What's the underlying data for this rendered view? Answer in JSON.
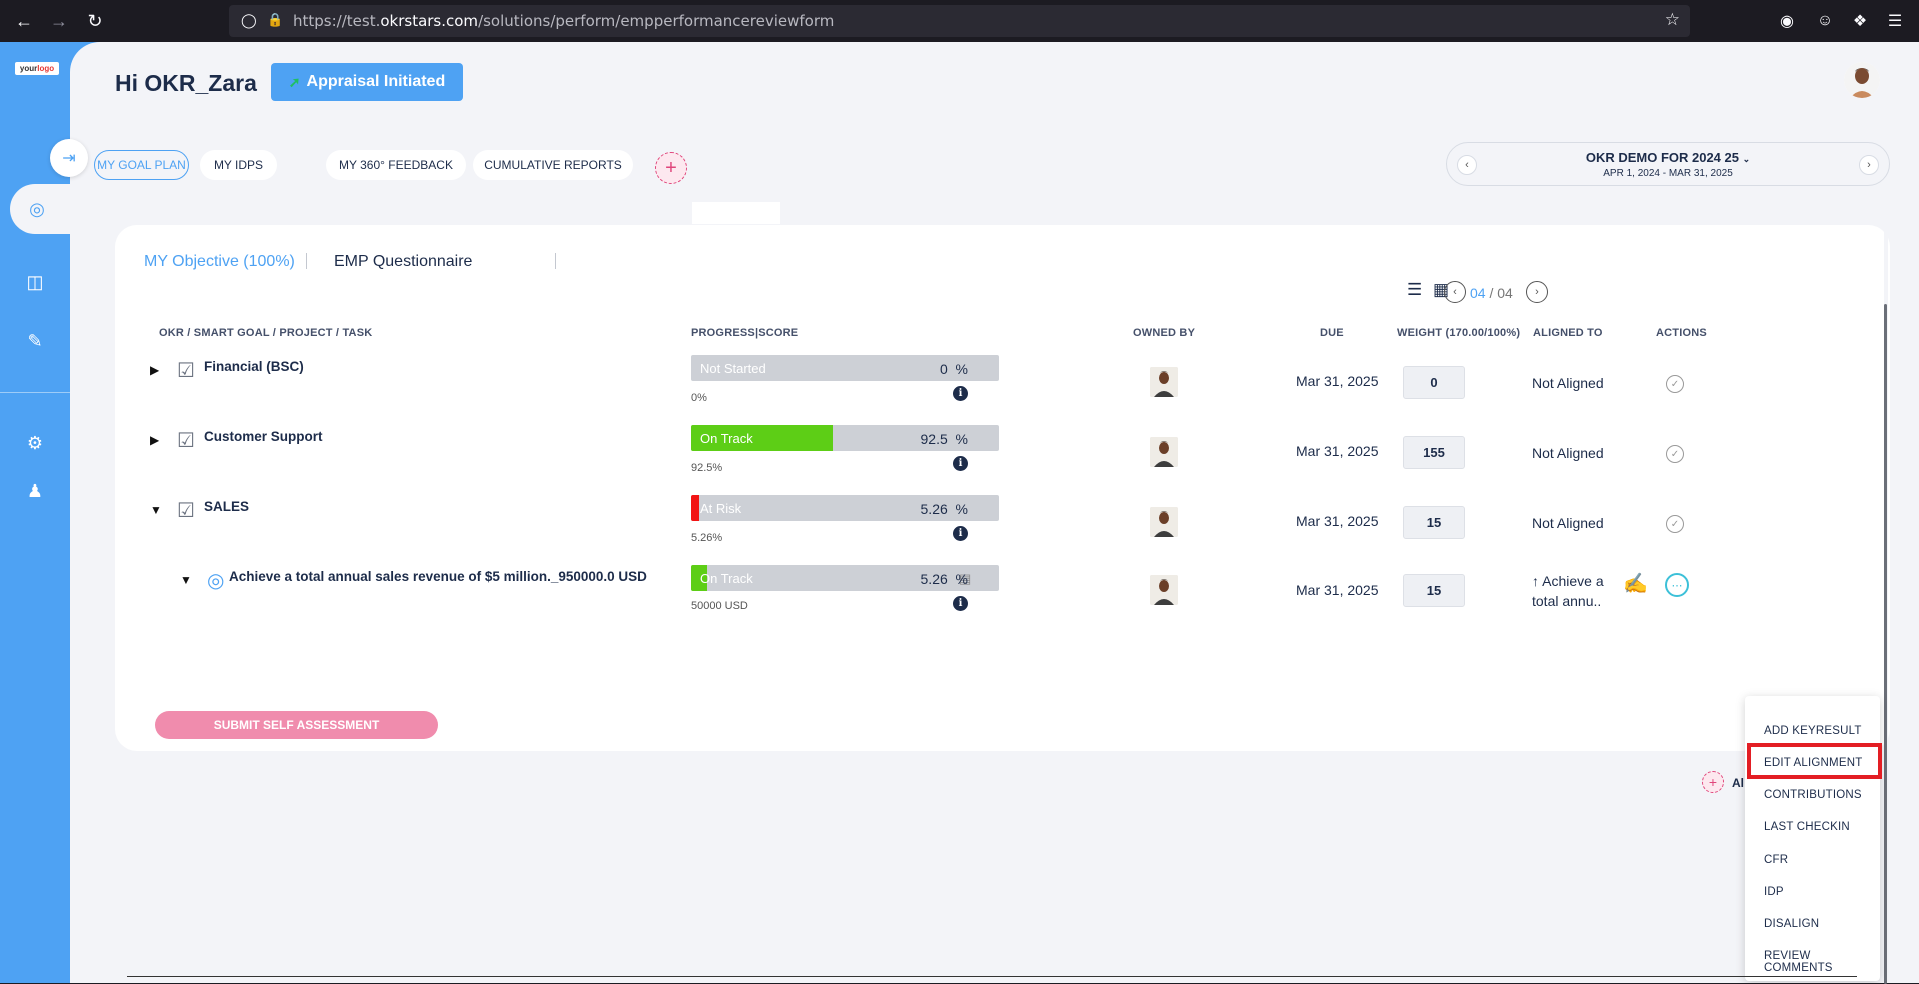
{
  "browser": {
    "url_prefix": "https://test.",
    "url_domain": "okrstars.com",
    "url_path": "/solutions/perform/empperformancereviewform"
  },
  "logo": {
    "text_a": "your",
    "text_b": "logo"
  },
  "header": {
    "greeting": "Hi OKR_Zara",
    "appraisal_label": "Appraisal Initiated"
  },
  "tabs": {
    "goal_plan": "MY GOAL PLAN",
    "idps": "MY IDPS",
    "feedback": "MY 360° FEEDBACK",
    "reports": "CUMULATIVE REPORTS"
  },
  "period": {
    "title": "OKR DEMO FOR 2024 25",
    "range": "APR 1, 2024 - MAR 31, 2025"
  },
  "card": {
    "tab_objective": "MY Objective (100%)",
    "tab_questionnaire": "EMP Questionnaire",
    "pager_current": "04",
    "pager_sep": "/",
    "pager_total": "04"
  },
  "columns": {
    "okr": "OKR / SMART GOAL / PROJECT / TASK",
    "progress": "PROGRESS|SCORE",
    "owned_by": "OWNED BY",
    "due": "DUE",
    "weight": "WEIGHT (170.00/100%)",
    "aligned_to": "ALIGNED TO",
    "actions": "ACTIONS"
  },
  "rows": [
    {
      "name": "Financial (BSC)",
      "status": "Not Started",
      "progress": 0,
      "color": "#cdd0d6",
      "sub": "0%",
      "score": "0",
      "unit": "%",
      "due": "Mar 31, 2025",
      "weight": "0",
      "aligned": "Not Aligned"
    },
    {
      "name": "Customer Support",
      "status": "On Track",
      "progress": 46,
      "color": "#5dce16",
      "sub": "92.5%",
      "score": "92.5",
      "unit": "%",
      "due": "Mar 31, 2025",
      "weight": "155",
      "aligned": "Not Aligned"
    },
    {
      "name": "SALES",
      "status": "At Risk",
      "progress": 2.6,
      "color": "#f21414",
      "sub": "5.26%",
      "score": "5.26",
      "unit": "%",
      "due": "Mar 31, 2025",
      "weight": "15",
      "aligned": "Not Aligned"
    },
    {
      "name": "Achieve a total annual sales revenue of $5 million._950000.0 USD",
      "status": "On Track",
      "progress": 5.26,
      "color": "#5dce16",
      "sub": "50000 USD",
      "score": "5.26",
      "unit": "%",
      "due": "Mar 31, 2025",
      "weight": "15",
      "aligned_line1": "↑ Achieve a",
      "aligned_line2": "total annu.."
    }
  ],
  "submit_label": "SUBMIT SELF ASSESSMENT",
  "add_label": "Al",
  "menu": [
    "ADD KEYRESULT",
    "EDIT ALIGNMENT",
    "CONTRIBUTIONS",
    "LAST CHECKIN",
    "CFR",
    "IDP",
    "DISALIGN",
    "REVIEW COMMENTS"
  ],
  "icons": {
    "back": "back-arrow-icon",
    "forward": "forward-arrow-icon",
    "reload": "reload-icon"
  }
}
